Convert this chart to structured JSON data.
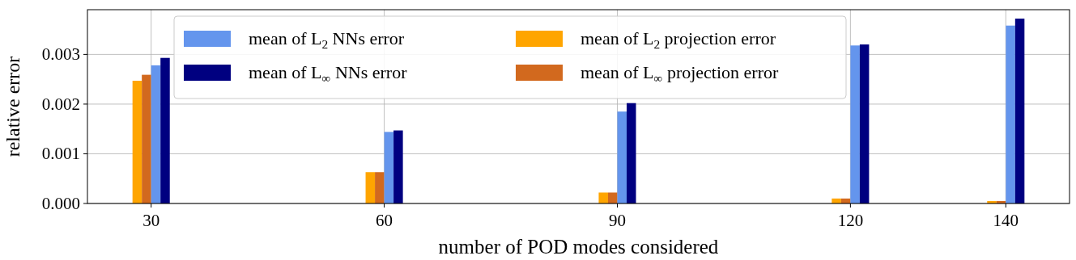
{
  "chart_data": {
    "type": "bar",
    "xlabel": "number of POD modes considered",
    "ylabel": "relative error",
    "x": [
      30,
      60,
      90,
      120,
      140
    ],
    "series": [
      {
        "name": "mean of L$_{2}$ projection error",
        "color": "#ffa500",
        "values": [
          0.00247,
          0.00063,
          0.00022,
          0.0001,
          5e-05
        ]
      },
      {
        "name": "mean of L$_{∞}$ projection error",
        "color": "#d2691e",
        "values": [
          0.00259,
          0.00063,
          0.00022,
          0.0001,
          5e-05
        ]
      },
      {
        "name": "mean of L$_{2}$ NNs error",
        "color": "#6495ed",
        "values": [
          0.00278,
          0.00144,
          0.00185,
          0.00318,
          0.00358
        ]
      },
      {
        "name": "mean of L$_{∞}$ NNs error",
        "color": "#000080",
        "values": [
          0.00293,
          0.00147,
          0.00202,
          0.0032,
          0.00372
        ]
      }
    ],
    "xlim": [
      21.8,
      148.2
    ],
    "xticks": [
      30,
      60,
      90,
      120,
      140
    ],
    "ylim": [
      0,
      0.0039
    ],
    "yticks": [
      {
        "value": 0,
        "label": "0.000"
      },
      {
        "value": 0.001,
        "label": "0.001"
      },
      {
        "value": 0.002,
        "label": "0.002"
      },
      {
        "value": 0.003,
        "label": "0.003"
      }
    ],
    "grid": true,
    "legend": "top"
  }
}
